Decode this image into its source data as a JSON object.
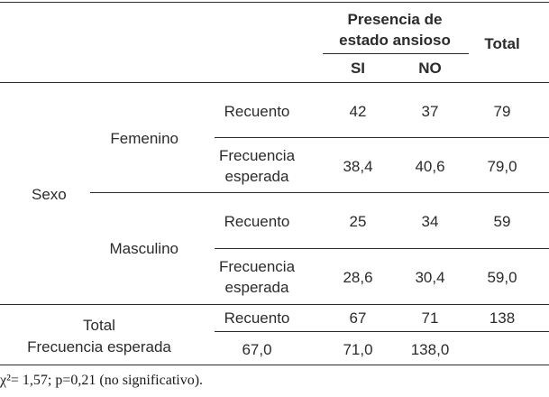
{
  "header": {
    "group_line1": "Presencia de",
    "group_line2": "estado ansioso",
    "col_si": "SI",
    "col_no": "NO",
    "col_total": "Total"
  },
  "row_group": "Sexo",
  "femenino": {
    "label": "Femenino",
    "recuento": {
      "label": "Recuento",
      "si": "42",
      "no": "37",
      "total": "79"
    },
    "frecuencia": {
      "label_line1": "Frecuencia",
      "label_line2": "esperada",
      "si": "38,4",
      "no": "40,6",
      "total": "79,0"
    }
  },
  "masculino": {
    "label": "Masculino",
    "recuento": {
      "label": "Recuento",
      "si": "25",
      "no": "34",
      "total": "59"
    },
    "frecuencia": {
      "label_line1": "Frecuencia",
      "label_line2": "esperada",
      "si": "28,6",
      "no": "30,4",
      "total": "59,0"
    }
  },
  "totals": {
    "label_line1": "Total",
    "label_line2": "Frecuencia esperada",
    "recuento": {
      "label": "Recuento",
      "si": "67",
      "no": "71",
      "total": "138"
    },
    "frecuencia": {
      "v1": "67,0",
      "v2": "71,0",
      "v3": "138,0"
    }
  },
  "footnote": "χ²= 1,57; p=0,21 (no significativo)."
}
